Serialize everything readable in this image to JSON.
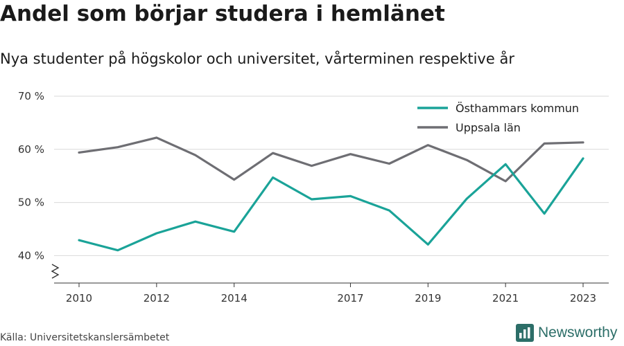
{
  "header": {
    "title": "Andel som börjar studera i hemlänet",
    "subtitle": "Nya studenter på högskolor och universitet, vårterminen respektive år"
  },
  "footer": {
    "source": "Källa: Universitetskanslersämbetet",
    "brand": "Newsworthy",
    "brand_color": "#2c6e68"
  },
  "chart_data": {
    "type": "line",
    "x": [
      2010,
      2011,
      2012,
      2013,
      2014,
      2015,
      2016,
      2017,
      2018,
      2019,
      2020,
      2021,
      2022,
      2023
    ],
    "x_tick_labels": [
      "2010",
      "2012",
      "2014",
      "2017",
      "2019",
      "2021",
      "2023"
    ],
    "y_ticks": [
      40,
      50,
      60,
      70
    ],
    "y_tick_labels": [
      "40 %",
      "50 %",
      "60 %",
      "70 %"
    ],
    "ylim": [
      35,
      70
    ],
    "grid": true,
    "axis_break": true,
    "legend_position": "top-right",
    "series": [
      {
        "name": "Östhammars kommun",
        "color": "#1aa398",
        "values": [
          42.9,
          41.0,
          44.2,
          46.4,
          44.5,
          54.7,
          50.6,
          51.2,
          48.5,
          42.1,
          50.7,
          57.2,
          47.9,
          58.3
        ]
      },
      {
        "name": "Uppsala län",
        "color": "#6e6e73",
        "values": [
          59.4,
          60.4,
          62.2,
          58.9,
          54.3,
          59.3,
          56.9,
          59.1,
          57.3,
          60.8,
          58.0,
          54.0,
          61.1,
          61.3
        ]
      }
    ]
  }
}
